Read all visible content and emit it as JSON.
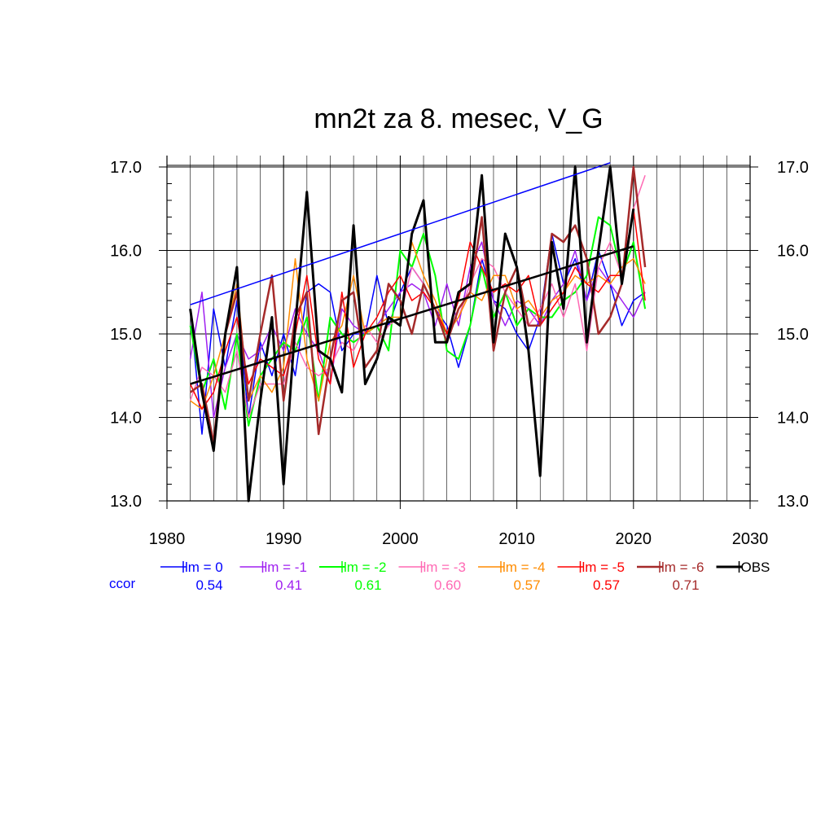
{
  "chart_data": {
    "type": "line",
    "title": "mn2t za 8. mesec, V_G",
    "xlabel": "",
    "ylabel": "",
    "xlim": [
      1980,
      2030
    ],
    "ylim": [
      13.0,
      17.0
    ],
    "x_ticks": [
      1980,
      1990,
      2000,
      2010,
      2020,
      2030
    ],
    "y_ticks": [
      13.0,
      14.0,
      15.0,
      16.0,
      17.0
    ],
    "x_tick_labels": [
      "1980",
      "1990",
      "2000",
      "2010",
      "2020",
      "2030"
    ],
    "y_tick_labels": [
      "13.0",
      "14.0",
      "15.0",
      "16.0",
      "17.0"
    ],
    "grid": true,
    "x": [
      1982,
      1983,
      1984,
      1985,
      1986,
      1987,
      1988,
      1989,
      1990,
      1991,
      1992,
      1993,
      1994,
      1995,
      1996,
      1997,
      1998,
      1999,
      2000,
      2001,
      2002,
      2003,
      2004,
      2005,
      2006,
      2007,
      2008,
      2009,
      2010,
      2011,
      2012,
      2013,
      2014,
      2015,
      2016,
      2017,
      2018,
      2019,
      2020,
      2021
    ],
    "series": [
      {
        "name": "lm = 0",
        "color": "#0000ff",
        "ccor": "0.54",
        "width": 1.5,
        "values": [
          15.3,
          13.8,
          15.3,
          14.6,
          15.4,
          14.0,
          14.9,
          14.5,
          15.0,
          14.5,
          15.5,
          15.6,
          15.5,
          14.8,
          15.0,
          15.0,
          15.7,
          15.1,
          15.5,
          15.8,
          15.6,
          15.3,
          15.1,
          14.6,
          15.1,
          15.9,
          15.4,
          15.3,
          15.0,
          14.8,
          15.2,
          16.2,
          15.6,
          15.9,
          15.4,
          16.0,
          15.6,
          15.1,
          15.4,
          15.5
        ]
      },
      {
        "name": "lm = -1",
        "color": "#a020f0",
        "ccor": "0.41",
        "width": 1.5,
        "values": [
          14.7,
          15.5,
          14.0,
          14.6,
          15.0,
          14.7,
          14.8,
          15.1,
          14.8,
          15.3,
          15.0,
          14.8,
          14.4,
          15.3,
          15.1,
          15.0,
          15.1,
          15.3,
          15.5,
          15.6,
          15.5,
          15.1,
          15.6,
          15.1,
          15.8,
          16.1,
          15.4,
          15.1,
          15.4,
          15.3,
          15.1,
          15.4,
          15.6,
          16.0,
          15.4,
          15.8,
          15.6,
          15.4,
          15.2,
          15.5
        ]
      },
      {
        "name": "lm = -2",
        "color": "#00ff00",
        "ccor": "0.61",
        "width": 2,
        "values": [
          15.1,
          14.3,
          14.7,
          14.1,
          15.0,
          13.9,
          14.5,
          14.7,
          14.9,
          14.8,
          15.2,
          14.2,
          15.2,
          15.0,
          14.9,
          15.0,
          15.1,
          14.8,
          16.0,
          15.8,
          16.2,
          15.7,
          14.8,
          14.7,
          15.1,
          15.8,
          15.2,
          15.5,
          15.1,
          15.3,
          15.2,
          15.2,
          15.4,
          15.5,
          15.7,
          16.4,
          16.3,
          15.7,
          16.1,
          15.3
        ]
      },
      {
        "name": "lm = -3",
        "color": "#ff69b4",
        "ccor": "0.60",
        "width": 1.5,
        "values": [
          14.2,
          14.6,
          14.5,
          14.3,
          14.8,
          14.0,
          14.4,
          14.4,
          14.4,
          14.9,
          14.6,
          14.5,
          14.6,
          14.9,
          14.8,
          15.1,
          14.9,
          15.1,
          15.2,
          15.8,
          15.6,
          15.3,
          15.0,
          15.2,
          15.6,
          15.9,
          15.8,
          15.5,
          15.3,
          15.1,
          15.3,
          15.6,
          15.2,
          15.6,
          14.8,
          15.8,
          16.1,
          15.7,
          16.5,
          16.9
        ]
      },
      {
        "name": "lm = -4",
        "color": "#ff8c00",
        "ccor": "0.57",
        "width": 1.5,
        "values": [
          14.2,
          14.1,
          14.5,
          15.0,
          15.6,
          14.2,
          14.5,
          14.3,
          14.6,
          15.9,
          14.7,
          14.2,
          14.9,
          15.1,
          15.7,
          15.0,
          15.1,
          15.2,
          15.2,
          16.1,
          15.7,
          15.4,
          15.0,
          15.2,
          15.5,
          15.4,
          15.7,
          15.7,
          15.3,
          15.4,
          15.2,
          15.4,
          15.5,
          15.7,
          15.6,
          15.7,
          15.6,
          15.8,
          15.9,
          15.6
        ]
      },
      {
        "name": "lm = -5",
        "color": "#ff0000",
        "ccor": "0.57",
        "width": 1.5,
        "values": [
          14.4,
          14.1,
          14.3,
          14.8,
          15.2,
          14.4,
          14.7,
          14.6,
          14.5,
          15.0,
          15.7,
          14.7,
          14.4,
          15.5,
          14.6,
          15.0,
          15.2,
          15.5,
          15.7,
          15.4,
          15.5,
          15.3,
          15.0,
          15.4,
          16.1,
          15.8,
          15.5,
          15.6,
          15.5,
          15.7,
          15.1,
          15.3,
          15.5,
          15.8,
          15.6,
          15.5,
          15.7,
          15.7,
          16.5,
          15.4
        ]
      },
      {
        "name": "lm = -6",
        "color": "#a52a2a",
        "ccor": "0.71",
        "width": 2.5,
        "values": [
          14.3,
          14.4,
          13.7,
          15.0,
          15.5,
          14.2,
          15.0,
          15.7,
          14.2,
          15.2,
          15.5,
          13.8,
          14.7,
          15.4,
          15.5,
          14.6,
          14.8,
          15.6,
          15.4,
          15.0,
          15.6,
          15.3,
          14.9,
          15.3,
          15.5,
          16.4,
          14.8,
          15.5,
          15.8,
          15.1,
          15.1,
          16.2,
          16.1,
          16.3,
          15.9,
          15.0,
          15.2,
          15.6,
          17.0,
          15.8
        ]
      },
      {
        "name": "OBS",
        "color": "#000000",
        "ccor": "",
        "width": 3,
        "values": [
          15.3,
          14.3,
          13.6,
          15.0,
          15.8,
          13.0,
          14.2,
          15.2,
          13.2,
          15.1,
          16.7,
          14.8,
          14.7,
          14.3,
          16.3,
          14.4,
          14.7,
          15.2,
          15.1,
          16.2,
          16.6,
          14.9,
          14.9,
          15.5,
          15.6,
          16.9,
          14.9,
          16.2,
          15.8,
          14.8,
          13.3,
          16.1,
          15.3,
          17.0,
          14.9,
          16.0,
          17.0,
          15.6,
          16.5,
          null
        ]
      }
    ],
    "trend_lines": [
      {
        "color": "#0000ff",
        "x": [
          1982,
          2018
        ],
        "y": [
          15.35,
          17.05
        ],
        "width": 1.5
      },
      {
        "color": "#000000",
        "x": [
          1982,
          2020
        ],
        "y": [
          14.4,
          16.05
        ],
        "width": 2.5
      }
    ],
    "ccor_label": "ccor",
    "ccor_label_color": "#0000ff"
  }
}
